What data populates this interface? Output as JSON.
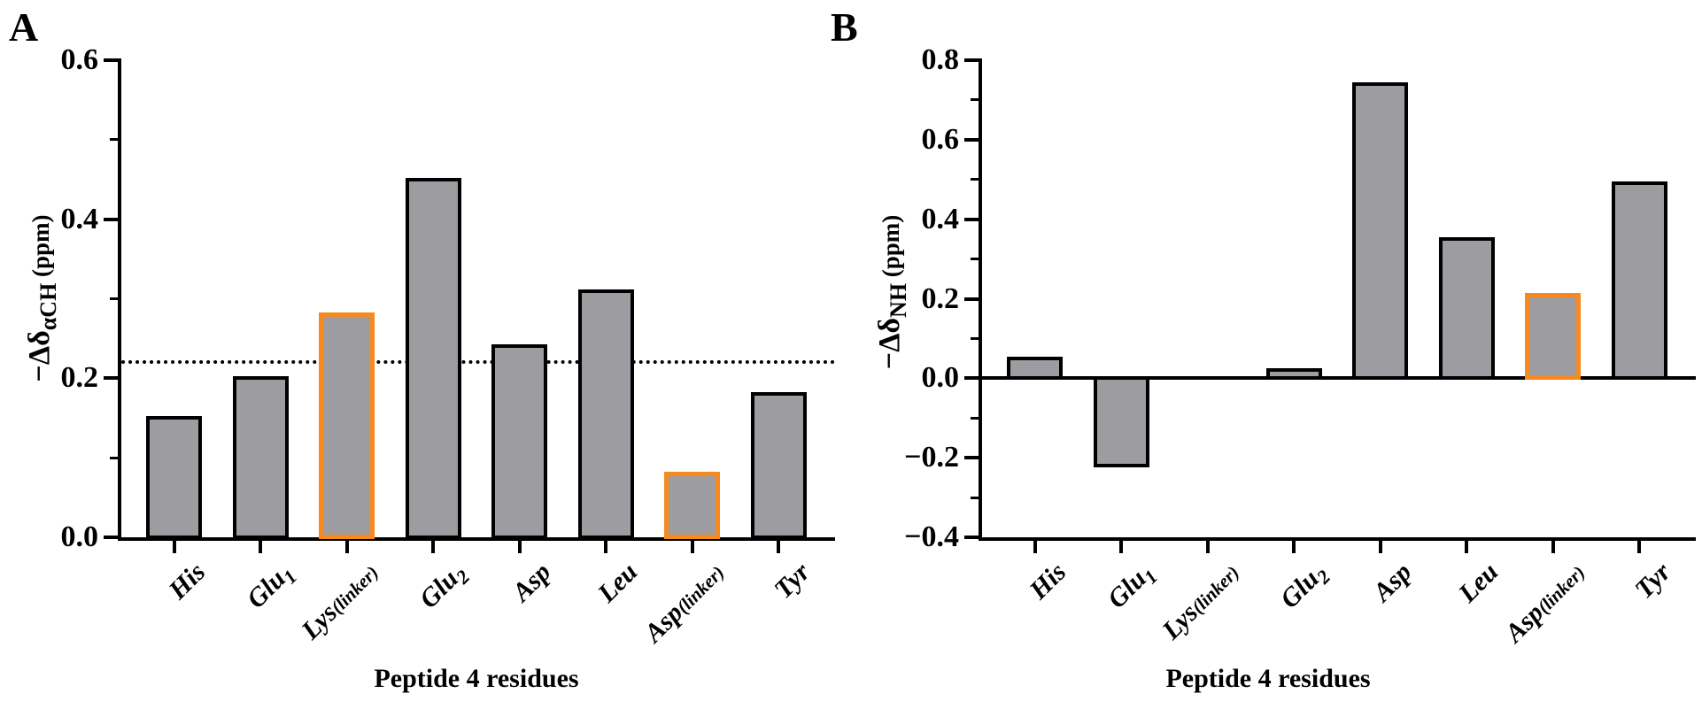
{
  "figure": {
    "background": "#ffffff",
    "xlabel_shared": "Peptide 4 residues"
  },
  "colors": {
    "bar_fill": "#9D9DA1",
    "bar_border": "#000000",
    "highlight_border": "#F68A1E",
    "axis": "#000000"
  },
  "chart_data": [
    {
      "type": "bar",
      "panel_label": "A",
      "ylabel": "−Δδ αCH (ppm)",
      "ylabel_parts": {
        "prefix": "−Δδ",
        "sub": "αCH",
        "unit": " (ppm)"
      },
      "xlabel": "Peptide 4 residues",
      "categories": [
        {
          "key": "his",
          "text": "His"
        },
        {
          "key": "glu1",
          "text": "Glu",
          "sub": "1"
        },
        {
          "key": "lys-linker",
          "text": "Lys",
          "small": "(linker)"
        },
        {
          "key": "glu2",
          "text": "Glu",
          "sub": "2"
        },
        {
          "key": "asp",
          "text": "Asp"
        },
        {
          "key": "leu",
          "text": "Leu"
        },
        {
          "key": "asp-linker",
          "text": "Asp",
          "small": "(linker)"
        },
        {
          "key": "tyr",
          "text": "Tyr"
        }
      ],
      "values": [
        0.15,
        0.2,
        0.28,
        0.45,
        0.24,
        0.31,
        0.08,
        0.18
      ],
      "highlighted_bars": [
        2,
        6
      ],
      "ylim": [
        0.0,
        0.6
      ],
      "yticks": [
        0.0,
        0.2,
        0.4,
        0.6
      ],
      "ytick_labels": [
        "0.0",
        "0.2",
        "0.4",
        "0.6"
      ],
      "minor_ticks": [
        0.1,
        0.3,
        0.5
      ],
      "reference_line": {
        "y": 0.22,
        "style": "dotted"
      },
      "grid": false,
      "legend": null
    },
    {
      "type": "bar",
      "panel_label": "B",
      "ylabel": "−Δδ NH (ppm)",
      "ylabel_parts": {
        "prefix": "−Δδ",
        "sub": "NH",
        "unit": " (ppm)"
      },
      "xlabel": "Peptide 4 residues",
      "categories": [
        {
          "key": "his",
          "text": "His"
        },
        {
          "key": "glu1",
          "text": "Glu",
          "sub": "1"
        },
        {
          "key": "lys-linker",
          "text": "Lys",
          "small": "(linker)"
        },
        {
          "key": "glu2",
          "text": "Glu",
          "sub": "2"
        },
        {
          "key": "asp",
          "text": "Asp"
        },
        {
          "key": "leu",
          "text": "Leu"
        },
        {
          "key": "asp-linker",
          "text": "Asp",
          "small": "(linker)"
        },
        {
          "key": "tyr",
          "text": "Tyr"
        }
      ],
      "values": [
        0.05,
        -0.22,
        0.0,
        0.02,
        0.74,
        0.35,
        0.21,
        0.49
      ],
      "highlighted_bars": [
        6
      ],
      "ylim": [
        -0.4,
        0.8
      ],
      "yticks": [
        -0.4,
        -0.2,
        0.0,
        0.2,
        0.4,
        0.6,
        0.8
      ],
      "ytick_labels": [
        "−0.4",
        "−0.2",
        "0.0",
        "0.2",
        "0.4",
        "0.6",
        "0.8"
      ],
      "minor_ticks": [
        -0.3,
        -0.1,
        0.1,
        0.3,
        0.5,
        0.7
      ],
      "zero_line": true,
      "grid": false,
      "legend": null
    }
  ]
}
